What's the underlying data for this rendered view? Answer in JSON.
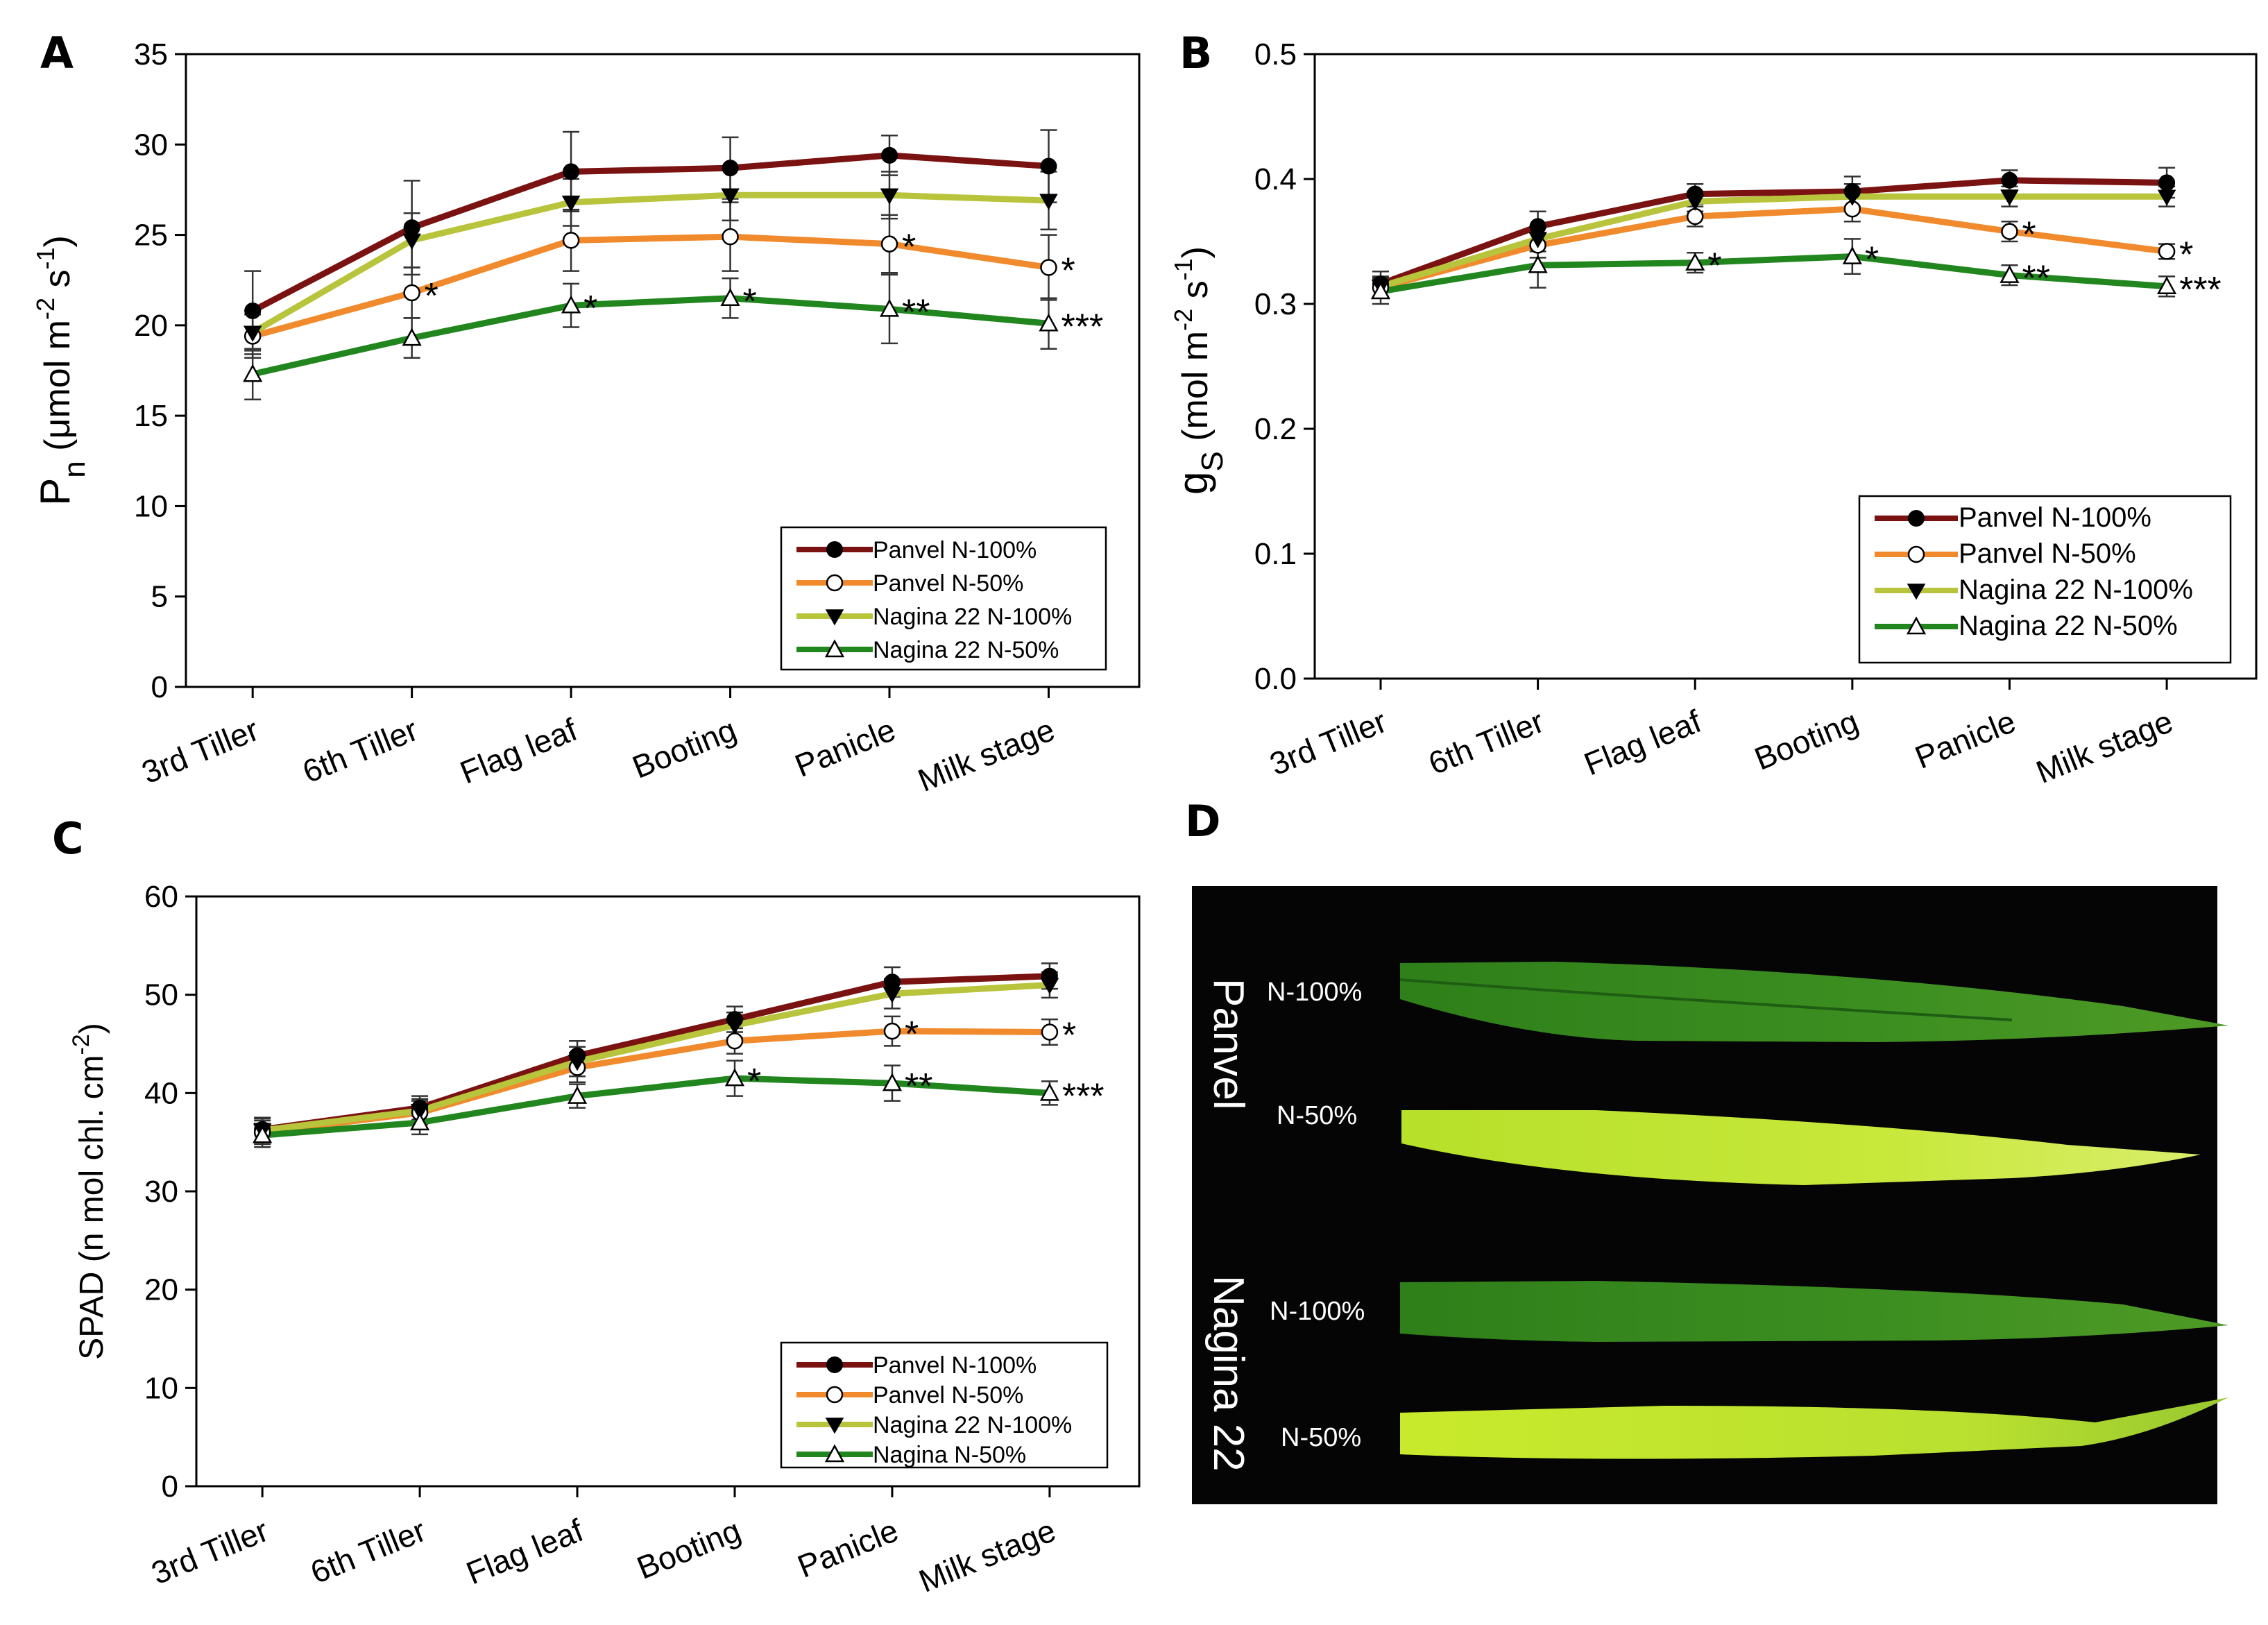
{
  "colors": {
    "panvel_100": "#7a1212",
    "panvel_50": "#f08a2c",
    "nagina_100": "#b8c43c",
    "nagina_50": "#22861f"
  },
  "chart_data": [
    {
      "panel": "A",
      "type": "line",
      "categories": [
        "3rd Tiller",
        "6th Tiller",
        "Flag leaf",
        "Booting",
        "Panicle",
        "Milk stage"
      ],
      "ylabel_main": "P",
      "ylabel_sub": "n",
      "ylabel_rest": "(μmol m",
      "ylabel_exp1": "-2",
      "ylabel_mid": " s",
      "ylabel_exp2": "-1",
      "ylabel_end": ")",
      "ylim": [
        0,
        35
      ],
      "yticks": [
        0,
        5,
        10,
        15,
        20,
        25,
        30,
        35
      ],
      "legend_position": "bottom-right",
      "series": [
        {
          "name": "Panvel N-100%",
          "key": "panvel_100",
          "marker": "filled-circle",
          "values": [
            20.8,
            25.4,
            28.5,
            28.7,
            29.4,
            28.8
          ],
          "errors": [
            2.2,
            2.6,
            2.2,
            1.7,
            1.1,
            2.0
          ]
        },
        {
          "name": "Panvel N-50%",
          "key": "panvel_50",
          "marker": "open-circle",
          "values": [
            19.4,
            21.8,
            24.7,
            24.9,
            24.5,
            23.2
          ],
          "errors": [
            1.2,
            1.4,
            1.7,
            1.9,
            1.6,
            1.8
          ]
        },
        {
          "name": "Nagina 22 N-100%",
          "key": "nagina_100",
          "marker": "filled-triangle-down",
          "values": [
            19.6,
            24.7,
            26.8,
            27.2,
            27.2,
            26.9
          ],
          "errors": [
            1.2,
            1.5,
            1.3,
            1.4,
            1.3,
            1.6
          ]
        },
        {
          "name": "Nagina 22 N-50%",
          "key": "nagina_50",
          "marker": "open-triangle-up",
          "values": [
            17.3,
            19.3,
            21.1,
            21.5,
            20.9,
            20.1
          ],
          "errors": [
            1.4,
            1.1,
            1.2,
            1.1,
            1.9,
            1.4
          ]
        }
      ],
      "annotations": [
        {
          "series": "panvel_50",
          "index": 1,
          "text": "*"
        },
        {
          "series": "panvel_50",
          "index": 4,
          "text": "*"
        },
        {
          "series": "panvel_50",
          "index": 5,
          "text": "*"
        },
        {
          "series": "nagina_50",
          "index": 2,
          "text": "*"
        },
        {
          "series": "nagina_50",
          "index": 3,
          "text": "*"
        },
        {
          "series": "nagina_50",
          "index": 4,
          "text": "**"
        },
        {
          "series": "nagina_50",
          "index": 5,
          "text": "***"
        }
      ]
    },
    {
      "panel": "B",
      "type": "line",
      "categories": [
        "3rd Tiller",
        "6th Tiller",
        "Flag leaf",
        "Booting",
        "Panicle",
        "Milk stage"
      ],
      "ylabel_main": "g",
      "ylabel_sub": "S",
      "ylabel_rest": "(mol m",
      "ylabel_exp1": "-2",
      "ylabel_mid": " s",
      "ylabel_exp2": "-1",
      "ylabel_end": ")",
      "ylim": [
        0,
        0.5
      ],
      "yticks": [
        "0.0",
        "0.1",
        "0.2",
        "0.3",
        "0.4",
        "0.5"
      ],
      "legend_position": "bottom-right",
      "series": [
        {
          "name": "Panvel N-100%",
          "key": "panvel_100",
          "marker": "filled-circle",
          "values": [
            0.316,
            0.362,
            0.388,
            0.39,
            0.399,
            0.397
          ],
          "errors": [
            0.01,
            0.012,
            0.008,
            0.012,
            0.008,
            0.012
          ]
        },
        {
          "name": "Panvel N-50%",
          "key": "panvel_50",
          "marker": "open-circle",
          "values": [
            0.313,
            0.347,
            0.37,
            0.376,
            0.358,
            0.342
          ],
          "errors": [
            0.008,
            0.01,
            0.008,
            0.01,
            0.008,
            0.006
          ]
        },
        {
          "name": "Nagina 22 N-100%",
          "key": "nagina_100",
          "marker": "filled-triangle-down",
          "values": [
            0.314,
            0.352,
            0.382,
            0.386,
            0.386,
            0.386
          ],
          "errors": [
            0.008,
            0.01,
            0.008,
            0.01,
            0.008,
            0.008
          ]
        },
        {
          "name": "Nagina 22 N-50%",
          "key": "nagina_50",
          "marker": "open-triangle-up",
          "values": [
            0.31,
            0.331,
            0.333,
            0.338,
            0.323,
            0.314
          ],
          "errors": [
            0.01,
            0.018,
            0.008,
            0.014,
            0.008,
            0.008
          ]
        }
      ],
      "annotations": [
        {
          "series": "panvel_50",
          "index": 4,
          "text": "*"
        },
        {
          "series": "panvel_50",
          "index": 5,
          "text": "*"
        },
        {
          "series": "nagina_50",
          "index": 2,
          "text": "*"
        },
        {
          "series": "nagina_50",
          "index": 3,
          "text": "*"
        },
        {
          "series": "nagina_50",
          "index": 4,
          "text": "**"
        },
        {
          "series": "nagina_50",
          "index": 5,
          "text": "***"
        }
      ]
    },
    {
      "panel": "C",
      "type": "line",
      "categories": [
        "3rd Tiller",
        "6th Tiller",
        "Flag leaf",
        "Booting",
        "Panicle",
        "Milk stage"
      ],
      "ylabel_main": "SPAD (n mol chl. cm",
      "ylabel_sub": "",
      "ylabel_rest": "",
      "ylabel_exp1": "-2",
      "ylabel_mid": "",
      "ylabel_exp2": "",
      "ylabel_end": ")",
      "ylim": [
        0,
        60
      ],
      "yticks": [
        0,
        10,
        20,
        30,
        40,
        50,
        60
      ],
      "legend_position": "bottom-right",
      "series": [
        {
          "name": "Panvel N-100%",
          "key": "panvel_100",
          "marker": "filled-circle",
          "values": [
            36.3,
            38.5,
            43.8,
            47.5,
            51.3,
            51.9
          ],
          "errors": [
            1.2,
            1.2,
            1.5,
            1.3,
            1.5,
            1.3
          ]
        },
        {
          "name": "Panvel N-50%",
          "key": "panvel_50",
          "marker": "open-circle",
          "values": [
            36.0,
            38.0,
            42.6,
            45.3,
            46.3,
            46.2
          ],
          "errors": [
            1.2,
            1.2,
            1.5,
            1.3,
            1.5,
            1.3
          ]
        },
        {
          "name": "Nagina 22 N-100%",
          "key": "nagina_100",
          "marker": "filled-triangle-down",
          "values": [
            36.2,
            38.2,
            43.2,
            46.9,
            50.1,
            51.0
          ],
          "errors": [
            1.2,
            1.2,
            1.5,
            1.3,
            1.5,
            1.3
          ]
        },
        {
          "name": "Nagina N-50%",
          "key": "nagina_50",
          "marker": "open-triangle-up",
          "values": [
            35.7,
            37.0,
            39.7,
            41.5,
            41.0,
            40.0
          ],
          "errors": [
            1.2,
            1.2,
            1.2,
            1.8,
            1.8,
            1.2
          ]
        }
      ],
      "annotations": [
        {
          "series": "panvel_50",
          "index": 4,
          "text": "*"
        },
        {
          "series": "panvel_50",
          "index": 5,
          "text": "*"
        },
        {
          "series": "nagina_50",
          "index": 3,
          "text": "*"
        },
        {
          "series": "nagina_50",
          "index": 4,
          "text": "**"
        },
        {
          "series": "nagina_50",
          "index": 5,
          "text": "***"
        }
      ]
    }
  ],
  "panel_d": {
    "letter": "D",
    "varieties": [
      "Panvel",
      "Nagina 22"
    ],
    "leaf_labels": [
      "N-100%",
      "N-50%",
      "N-100%",
      "N-50%"
    ]
  }
}
